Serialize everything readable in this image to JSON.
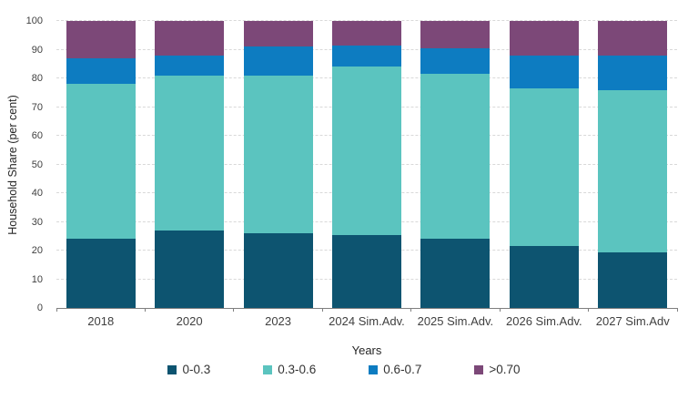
{
  "chart_data": {
    "type": "bar",
    "stacked": true,
    "xlabel": "Years",
    "ylabel": "Household Share (per cent)",
    "ylim": [
      0,
      100
    ],
    "ytick_step": 10,
    "grid": "horizontal-dashed",
    "legend_position": "bottom",
    "categories": [
      "2018",
      "2020",
      "2023",
      "2024 Sim.Adv.",
      "2025 Sim.Adv.",
      "2026 Sim.Adv.",
      "2027 Sim.Adv"
    ],
    "series": [
      {
        "name": "0-0.3",
        "color": "#0d5470",
        "values": [
          24,
          27,
          26,
          25.5,
          24,
          21.5,
          19.5
        ]
      },
      {
        "name": "0.3-0.6",
        "color": "#5bc4bf",
        "values": [
          54,
          54,
          55,
          58.5,
          57.5,
          55,
          56.5
        ]
      },
      {
        "name": "0.6-0.7",
        "color": "#0d7cc1",
        "values": [
          9,
          7,
          10,
          7.5,
          9,
          11.5,
          12
        ]
      },
      {
        "name": ">0.70",
        "color": "#7c4878",
        "values": [
          13,
          12,
          9,
          8.5,
          9.5,
          12,
          12
        ]
      }
    ],
    "axis_colors": {
      "baseline": "#7f7f7f",
      "gridline": "#d9d9d9",
      "tick_text": "#404040"
    }
  }
}
